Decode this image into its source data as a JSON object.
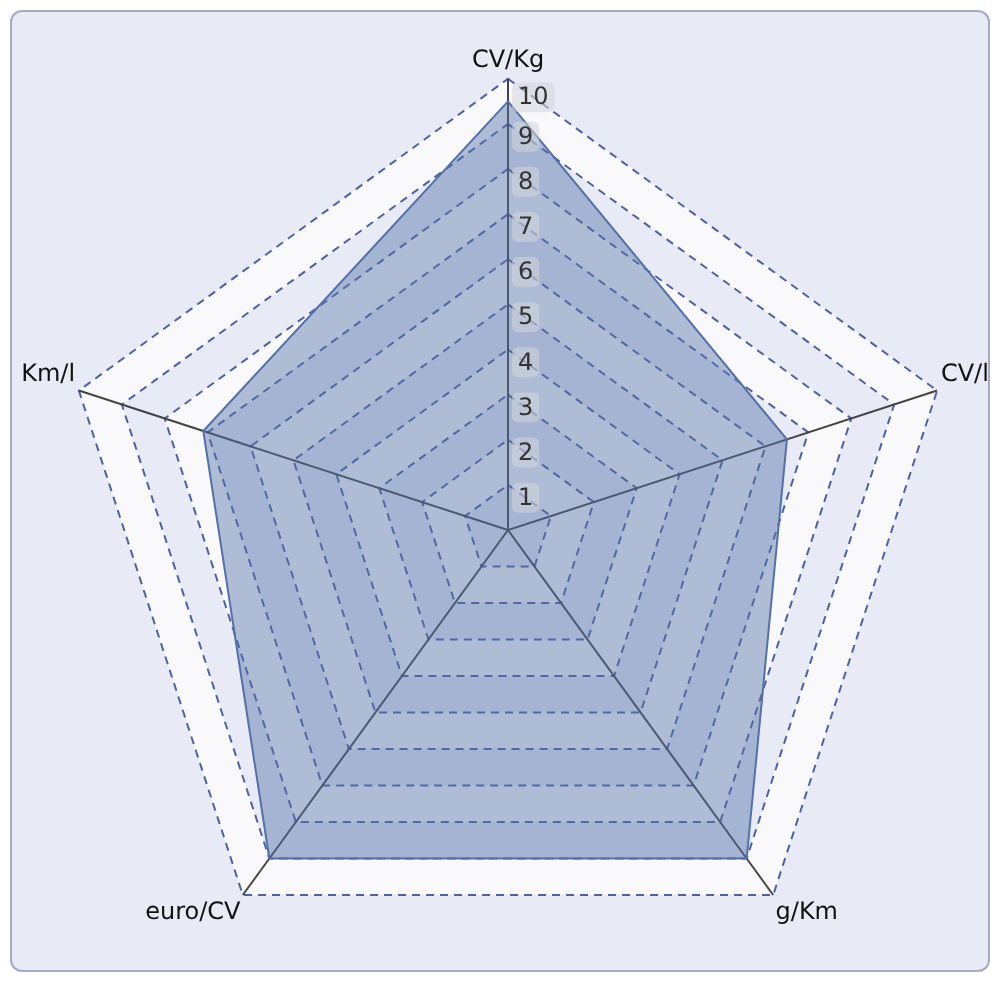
{
  "chart_data": {
    "type": "radar",
    "categories": [
      "CV/Kg",
      "CV/l",
      "g/Km",
      "euro/CV",
      "Km/l"
    ],
    "series": [
      {
        "color": "#5470a8",
        "values": [
          9.5,
          6.5,
          9,
          9,
          7.1
        ]
      }
    ],
    "ylim": [
      0,
      10
    ],
    "yticks": [
      1,
      2,
      3,
      4,
      5,
      6,
      7,
      8,
      9,
      10
    ],
    "grid": true
  }
}
